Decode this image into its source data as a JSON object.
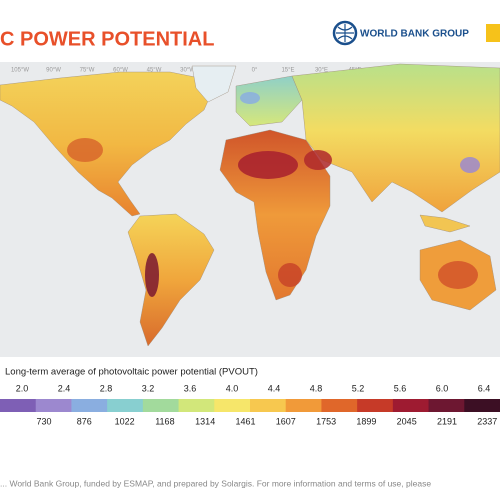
{
  "header": {
    "title": "C POWER POTENTIAL",
    "logo": "WORLD BANK GROUP"
  },
  "map": {
    "longitudes": [
      "105°W",
      "90°W",
      "75°W",
      "60°W",
      "45°W",
      "30°W",
      "15°W",
      "0°",
      "15°E",
      "30°E",
      "45°E",
      "60°E",
      "75°E",
      "90°E"
    ]
  },
  "legend": {
    "title": "Long-term average of photovoltaic power potential (PVOUT)",
    "daily": [
      "2.0",
      "2.4",
      "2.8",
      "3.2",
      "3.6",
      "4.0",
      "4.4",
      "4.8",
      "5.2",
      "5.6",
      "6.0",
      "6.4"
    ],
    "yearly": [
      "730",
      "876",
      "1022",
      "1168",
      "1314",
      "1461",
      "1607",
      "1753",
      "1899",
      "2045",
      "2191",
      "2337"
    ],
    "colors": [
      "#7e5fb5",
      "#9c88cf",
      "#8aaee0",
      "#88cfd0",
      "#a2da9c",
      "#d2e77a",
      "#f6e66a",
      "#f7c84f",
      "#f19a39",
      "#e0672a",
      "#c63a28",
      "#9e1b31",
      "#6d1731",
      "#3c0f24"
    ]
  },
  "footer": {
    "text": "... World Bank Group, funded by ESMAP, and prepared by Solargis. For more information and terms of use, please"
  }
}
